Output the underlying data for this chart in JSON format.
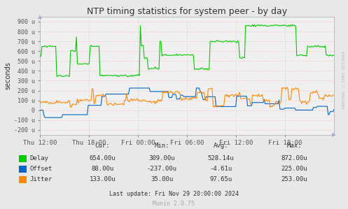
{
  "title": "NTP timing statistics for system peer - by day",
  "ylabel": "seconds",
  "ylim": [
    -250,
    950
  ],
  "yticks": [
    -200,
    -100,
    0,
    100,
    200,
    300,
    400,
    500,
    600,
    700,
    800,
    900
  ],
  "ytick_labels": [
    "-200 u",
    "-100 u",
    "0",
    "100 u",
    "200 u",
    "300 u",
    "400 u",
    "500 u",
    "600 u",
    "700 u",
    "800 u",
    "900 u"
  ],
  "xtick_labels": [
    "Thu 12:00",
    "Thu 18:00",
    "Fri 00:00",
    "Fri 06:00",
    "Fri 12:00",
    "Fri 18:00"
  ],
  "bg_color": "#e8e8e8",
  "plot_bg_color": "#f0f0f0",
  "grid_color": "#ffaaaa",
  "line_colors": {
    "delay": "#00cc00",
    "offset": "#0066cc",
    "jitter": "#ff8800"
  },
  "legend": [
    {
      "label": "Delay",
      "color": "#00cc00",
      "cur": "654.00u",
      "min": "309.00u",
      "avg": "528.14u",
      "max": "872.00u"
    },
    {
      "label": "Offset",
      "color": "#0066cc",
      "cur": "88.00u",
      "min": "-237.00u",
      "avg": "-4.61u",
      "max": "225.00u"
    },
    {
      "label": "Jitter",
      "color": "#ff8800",
      "cur": "133.00u",
      "min": "35.00u",
      "avg": "97.65u",
      "max": "253.00u"
    }
  ],
  "footer": "Last update: Fri Nov 29 20:00:00 2024",
  "munin_label": "Munin 2.0.75",
  "rrdtool_label": "RRDTOOL / TOBI OETIKER",
  "num_points": 300
}
